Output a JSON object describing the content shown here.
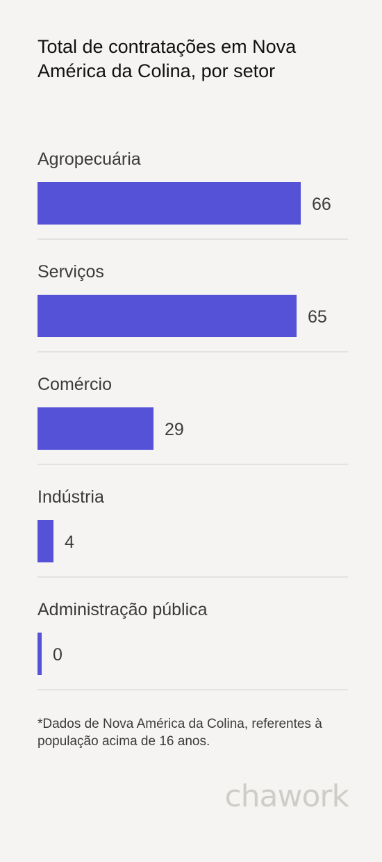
{
  "title": "Total de contratações em Nova América da Colina, por setor",
  "footnote": "*Dados de Nova América da Colina, referentes à população acima de 16 anos.",
  "logo": "chawork",
  "colors": {
    "bar": "#5652d8",
    "background": "#f5f4f2",
    "separator": "#e3e2df"
  },
  "chart_data": {
    "type": "bar",
    "orientation": "horizontal",
    "title": "Total de contratações em Nova América da Colina, por setor",
    "categories": [
      "Agropecuária",
      "Serviços",
      "Comércio",
      "Indústria",
      "Administração pública"
    ],
    "values": [
      66,
      65,
      29,
      4,
      0
    ],
    "xlim": [
      0,
      66
    ],
    "grid": false,
    "legend": "none"
  }
}
